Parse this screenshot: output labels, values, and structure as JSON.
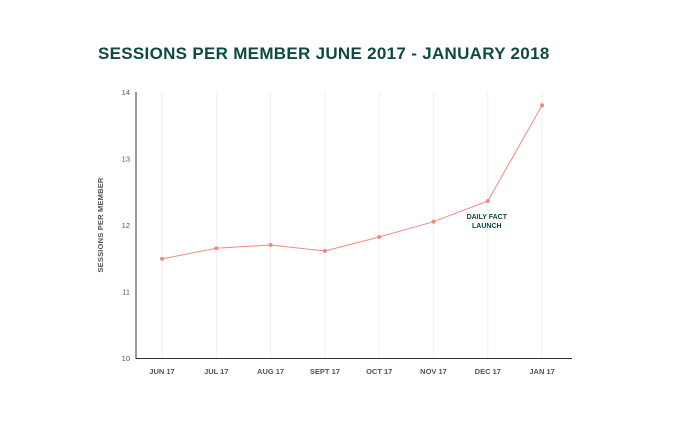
{
  "chart_data": {
    "type": "line",
    "title": "SESSIONS PER MEMBER JUNE 2017 - JANUARY 2018",
    "xlabel": "",
    "ylabel": "SESSIONS PER MEMBER",
    "categories": [
      "JUN 17",
      "JUL 17",
      "AUG 17",
      "SEPT 17",
      "OCT 17",
      "NOV 17",
      "DEC 17",
      "JAN 17"
    ],
    "series": [
      {
        "values": [
          11.49,
          11.65,
          11.7,
          11.61,
          11.82,
          12.05,
          12.36,
          13.8
        ],
        "color": "#f08a80"
      }
    ],
    "ylim": [
      10,
      14
    ],
    "yticks": [
      "10",
      "11",
      "12",
      "13",
      "14"
    ],
    "annotation": {
      "lines": [
        "DAILY FACT",
        "LAUNCH"
      ],
      "category": "DEC 17",
      "color": "#0e4a43"
    },
    "grid": "vertical",
    "legend": "none"
  }
}
